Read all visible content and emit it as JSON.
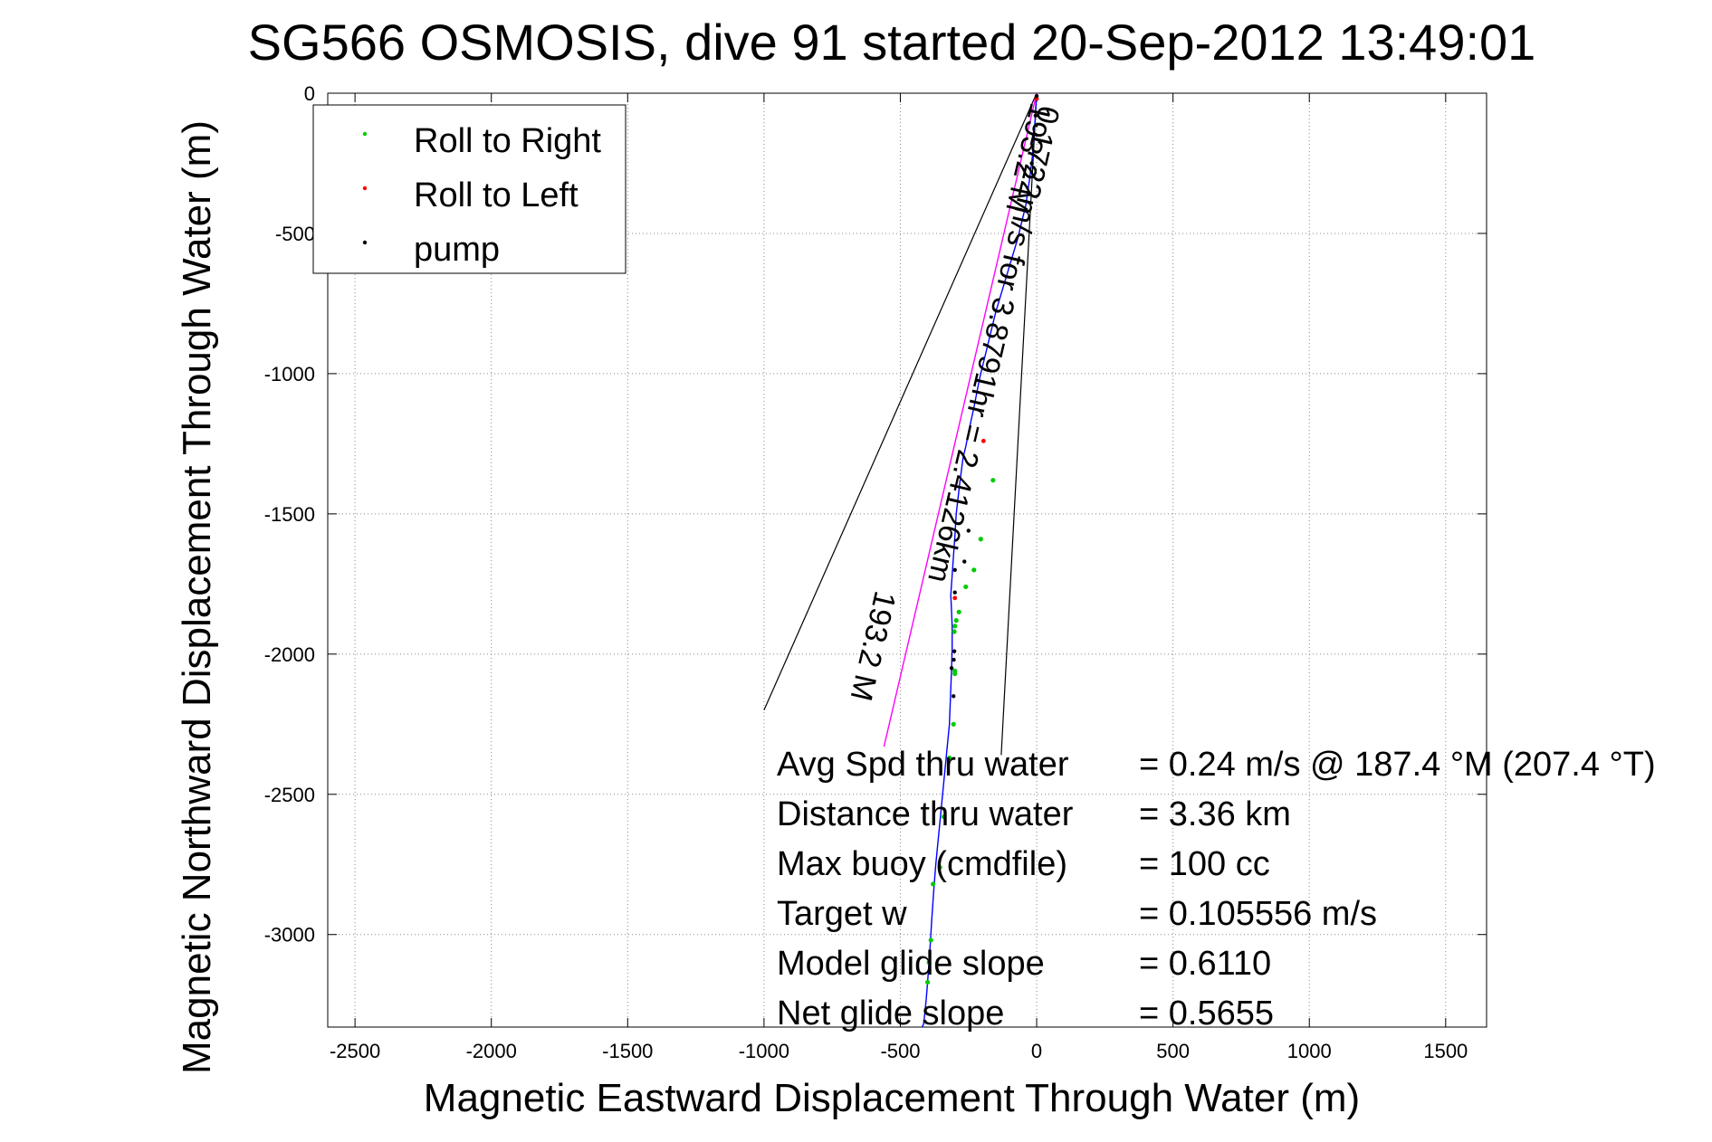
{
  "chart_data": {
    "type": "line",
    "title": "SG566 OSMOSIS, dive 91 started 20-Sep-2012 13:49:01",
    "xlabel": "Magnetic Eastward Displacement Through Water (m)",
    "ylabel": "Magnetic Northward Displacement Through Water (m)",
    "xlim": [
      -2600,
      1650
    ],
    "ylim": [
      -3330,
      0
    ],
    "xticks": [
      -2500,
      -2000,
      -1500,
      -1000,
      -500,
      0,
      500,
      1000,
      1500
    ],
    "yticks": [
      0,
      -500,
      -1000,
      -1500,
      -2000,
      -2500,
      -3000
    ],
    "xtick_labels": [
      "-2500",
      "-2000",
      "-1500",
      "-1000",
      "-500",
      "0",
      "500",
      "1000",
      "1500"
    ],
    "ytick_labels": [
      "0",
      "-500",
      "-1000",
      "-1500",
      "-2000",
      "-2500",
      "-3000"
    ],
    "grid": true,
    "legend_position": "top-left",
    "legend": [
      {
        "label": "Roll to Right",
        "color": "#00cc00"
      },
      {
        "label": "Roll to Left",
        "color": "#ff0000"
      },
      {
        "label": "pump",
        "color": "#000000"
      }
    ],
    "series": [
      {
        "color": "#0000ff",
        "x": [
          0,
          -2,
          -4,
          -6,
          -10,
          -15,
          -25,
          -40,
          -70,
          -110,
          -150,
          -180,
          -210,
          -230,
          -248,
          -260,
          -270,
          -282,
          -295,
          -300,
          -305,
          -310,
          -315,
          -312,
          -310,
          -310,
          -312,
          -316,
          -320,
          -330,
          -340,
          -350,
          -360,
          -370,
          -378,
          -385,
          -390,
          -395,
          -400,
          -405,
          -410,
          -415,
          -420
        ],
        "y": [
          0,
          -30,
          -60,
          -100,
          -150,
          -220,
          -300,
          -400,
          -520,
          -650,
          -780,
          -900,
          -1020,
          -1120,
          -1200,
          -1260,
          -1300,
          -1390,
          -1500,
          -1580,
          -1650,
          -1720,
          -1790,
          -1850,
          -1900,
          -1980,
          -2050,
          -2150,
          -2250,
          -2350,
          -2450,
          -2550,
          -2650,
          -2750,
          -2850,
          -2950,
          -3030,
          -3100,
          -3170,
          -3230,
          -3280,
          -3320,
          -3330
        ]
      },
      {
        "color": "#ff00ff",
        "x": [
          0,
          -560
        ],
        "y": [
          0,
          -2330
        ]
      }
    ],
    "roll_right_points": {
      "x": [
        -160,
        -205,
        -230,
        -260,
        -285,
        -295,
        -300,
        -302,
        -300,
        -300,
        -305,
        -320,
        -340,
        -355,
        -380,
        -388,
        -395,
        -400
      ],
      "y": [
        -1380,
        -1590,
        -1700,
        -1760,
        -1850,
        -1880,
        -1900,
        -1920,
        -2060,
        -2070,
        -2250,
        -2370,
        -2580,
        -2760,
        -2820,
        -3020,
        -3100,
        -3170
      ]
    },
    "roll_left_points": {
      "x": [
        0,
        -195,
        -300
      ],
      "y": [
        -20,
        -1240,
        -1800
      ]
    },
    "pump_points": {
      "x": [
        0,
        -4,
        -18,
        -250,
        -265,
        -300,
        -300,
        -302,
        -304,
        -305,
        -312
      ],
      "y": [
        -10,
        -80,
        -250,
        -1560,
        -1670,
        -1700,
        -1780,
        -1990,
        -2020,
        -2150,
        -2050
      ]
    },
    "sector_lines": [
      {
        "x": [
          0,
          -1000
        ],
        "y": [
          0,
          -2200
        ]
      },
      {
        "x": [
          0,
          -130
        ],
        "y": [
          0,
          -2360
        ]
      }
    ],
    "annotations": [
      {
        "text": "193.2 M",
        "x": -20,
        "y": -30,
        "angle_deg": 103.2
      },
      {
        "text": "0.1722m/s for 3.8791hr = 2.4126km",
        "x": 10,
        "y": -40,
        "angle_deg": 103.2
      },
      {
        "text": "193.2 M",
        "x": -590,
        "y": -1770,
        "angle_deg": 103.2
      }
    ],
    "stats": [
      {
        "label": "Avg Spd thru water",
        "value": "=  0.24 m/s @ 187.4 °M (207.4 °T)"
      },
      {
        "label": "Distance thru water",
        "value": "=  3.36 km"
      },
      {
        "label": "Max buoy (cmdfile)",
        "value": "= 100 cc"
      },
      {
        "label": "Target w",
        "value": "= 0.105556 m/s"
      },
      {
        "label": "Model glide slope",
        "value": "= 0.6110"
      },
      {
        "label": "Net glide slope",
        "value": "= 0.5655"
      }
    ]
  }
}
